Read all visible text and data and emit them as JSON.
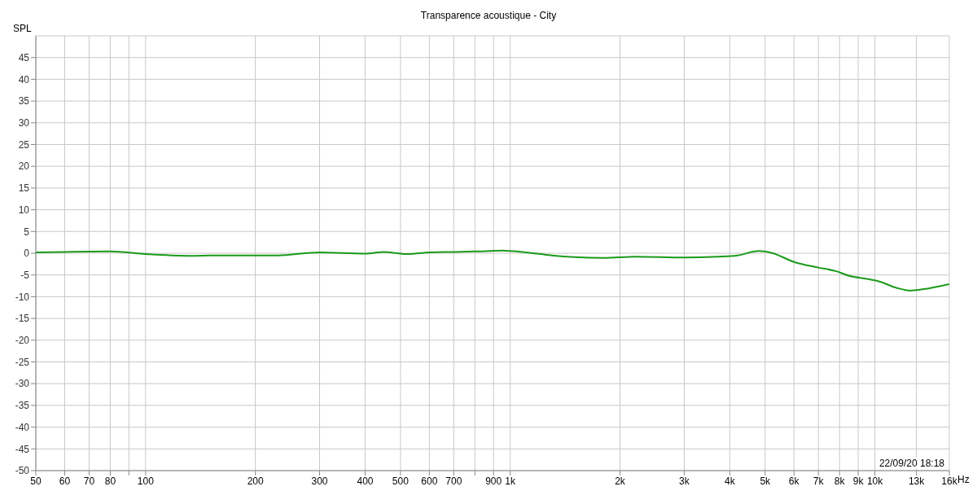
{
  "chart_data": {
    "type": "line",
    "title": "Transparence acoustique - City",
    "ylabel": "SPL",
    "xlabel": "Hz",
    "annotations": [
      "22/09/20 18:18"
    ],
    "log": "x",
    "grid": true,
    "legend": false,
    "marker": "none",
    "line_style": "solid",
    "xlim": [
      50,
      16000
    ],
    "ylim": [
      -50,
      50
    ],
    "xticks": [
      50,
      60,
      70,
      80,
      {
        "value": 90,
        "label": null
      },
      100,
      200,
      300,
      400,
      500,
      600,
      700,
      {
        "value": 800,
        "label": null
      },
      900,
      {
        "value": 1000,
        "label": "1k"
      },
      {
        "value": 2000,
        "label": "2k"
      },
      {
        "value": 3000,
        "label": "3k"
      },
      {
        "value": 4000,
        "label": "4k"
      },
      {
        "value": 5000,
        "label": "5k"
      },
      {
        "value": 6000,
        "label": "6k"
      },
      {
        "value": 7000,
        "label": "7k"
      },
      {
        "value": 8000,
        "label": "8k"
      },
      {
        "value": 9000,
        "label": "9k"
      },
      {
        "value": 10000,
        "label": "10k"
      },
      {
        "value": 13000,
        "label": "13k"
      },
      {
        "value": 16000,
        "label": "16k"
      }
    ],
    "yticks": [
      -50,
      -45,
      -40,
      -35,
      -30,
      -25,
      -20,
      -15,
      -10,
      -5,
      0,
      5,
      10,
      15,
      20,
      25,
      30,
      35,
      40,
      45
    ],
    "series": [
      {
        "color": "#1a9a1a",
        "x": [
          50,
          60,
          80,
          100,
          130,
          160,
          230,
          300,
          400,
          450,
          520,
          600,
          700,
          800,
          950,
          1100,
          1300,
          1500,
          1800,
          2200,
          3000,
          3700,
          4200,
          4800,
          5200,
          6000,
          7000,
          7800,
          8500,
          9500,
          10200,
          11500,
          12500,
          13500,
          16000
        ],
        "values": [
          0.2,
          0.3,
          0.4,
          -0.2,
          -0.6,
          -0.5,
          -0.5,
          0.2,
          -0.1,
          0.3,
          -0.2,
          0.2,
          0.3,
          0.4,
          0.6,
          0.2,
          -0.5,
          -0.9,
          -1.1,
          -0.8,
          -1.0,
          -0.8,
          -0.5,
          0.5,
          0.1,
          -2.0,
          -3.3,
          -4.1,
          -5.2,
          -5.9,
          -6.4,
          -8.0,
          -8.6,
          -8.3,
          -7.1
        ]
      }
    ]
  }
}
